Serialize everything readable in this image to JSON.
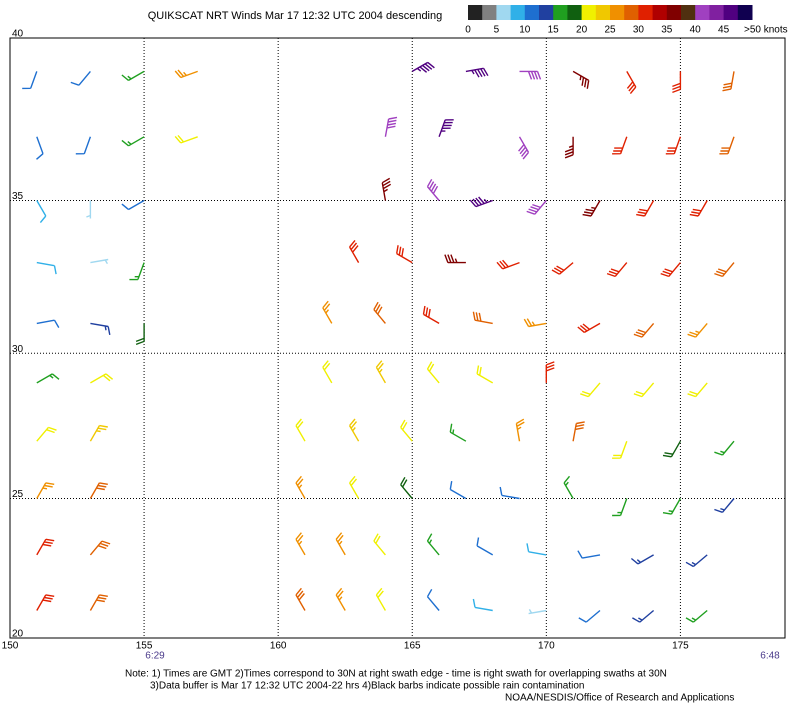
{
  "chart_data": {
    "type": "wind_barbs",
    "title": "QUIKSCAT NRT Winds Mar 17 12:32 UTC 2004 descending",
    "xlim": [
      150,
      178.9
    ],
    "ylim": [
      20,
      40
    ],
    "xticks": [
      150,
      155,
      160,
      165,
      170,
      175
    ],
    "yticks": [
      20,
      25,
      30,
      35,
      40
    ],
    "grid": true,
    "swath_times": [
      "6:29",
      "6:48"
    ],
    "notes": [
      "Note: 1) Times are GMT 2)Times correspond to 30N at right swath edge - time is right swath for overlapping swaths at 30N",
      "3)Data buffer is Mar 17 12:32 UTC 2004-22 hrs 4)Black barbs indicate possible rain contamination",
      "NOAA/NESDIS/Office of Research and Applications"
    ],
    "colorbar": {
      "range": [
        0,
        50
      ],
      "colors": [
        "#222222",
        "#808080",
        "#a0d8f0",
        "#30b0e8",
        "#1e6fd0",
        "#2040a0",
        "#20a020",
        "#106010",
        "#f0f000",
        "#f0c800",
        "#f09000",
        "#e06000",
        "#e02000",
        "#b00000",
        "#800000",
        "#503010",
        "#a040c0",
        "#8020a0",
        "#500080",
        "#100050"
      ],
      "ticks": [
        0,
        5,
        10,
        15,
        20,
        25,
        30,
        35,
        40,
        45,
        {
          "value": 50,
          "label": ">50 knots"
        }
      ]
    },
    "barbs": [
      [
        151,
        39,
        12,
        200
      ],
      [
        153,
        39,
        12,
        220
      ],
      [
        155,
        39,
        15,
        240
      ],
      [
        157,
        39,
        25,
        250
      ],
      [
        151,
        37,
        10,
        160
      ],
      [
        153,
        37,
        10,
        200
      ],
      [
        155,
        37,
        15,
        240
      ],
      [
        157,
        37,
        22,
        250
      ],
      [
        151,
        35,
        8,
        150
      ],
      [
        153,
        35,
        5,
        180
      ],
      [
        155,
        35,
        12,
        240
      ],
      [
        151,
        33,
        8,
        100
      ],
      [
        153,
        33,
        6,
        80
      ],
      [
        155,
        33,
        15,
        200
      ],
      [
        151,
        31,
        12,
        80
      ],
      [
        153,
        31,
        14,
        100
      ],
      [
        155,
        31,
        18,
        180
      ],
      [
        151,
        29,
        15,
        60
      ],
      [
        153,
        29,
        20,
        60
      ],
      [
        151,
        27,
        22,
        40
      ],
      [
        153,
        27,
        24,
        30
      ],
      [
        151,
        25,
        27,
        30
      ],
      [
        153,
        25,
        28,
        30
      ],
      [
        151,
        23,
        30,
        30
      ],
      [
        153,
        23,
        28,
        40
      ],
      [
        151,
        21,
        30,
        30
      ],
      [
        153,
        21,
        28,
        30
      ],
      [
        165,
        39,
        45,
        60
      ],
      [
        167,
        39,
        45,
        80
      ],
      [
        169,
        39,
        40,
        90
      ],
      [
        171,
        39,
        35,
        120
      ],
      [
        173,
        39,
        32,
        150
      ],
      [
        175,
        39,
        30,
        180
      ],
      [
        177,
        39,
        28,
        190
      ],
      [
        164,
        37,
        40,
        10
      ],
      [
        166,
        37,
        45,
        20
      ],
      [
        169,
        37,
        40,
        150
      ],
      [
        171,
        37,
        35,
        180
      ],
      [
        173,
        37,
        32,
        200
      ],
      [
        175,
        37,
        30,
        200
      ],
      [
        177,
        37,
        28,
        200
      ],
      [
        164,
        35,
        35,
        350
      ],
      [
        166,
        35,
        40,
        320
      ],
      [
        168,
        35,
        45,
        250
      ],
      [
        170,
        35,
        40,
        220
      ],
      [
        172,
        35,
        35,
        210
      ],
      [
        174,
        35,
        32,
        210
      ],
      [
        176,
        35,
        30,
        210
      ],
      [
        163,
        33,
        30,
        330
      ],
      [
        165,
        33,
        32,
        300
      ],
      [
        167,
        33,
        35,
        270
      ],
      [
        169,
        33,
        32,
        250
      ],
      [
        171,
        33,
        30,
        230
      ],
      [
        173,
        33,
        32,
        220
      ],
      [
        175,
        33,
        30,
        220
      ],
      [
        177,
        33,
        28,
        220
      ],
      [
        162,
        31,
        25,
        330
      ],
      [
        164,
        31,
        28,
        320
      ],
      [
        166,
        31,
        30,
        300
      ],
      [
        168,
        31,
        28,
        280
      ],
      [
        170,
        31,
        25,
        260
      ],
      [
        172,
        31,
        30,
        240
      ],
      [
        174,
        31,
        28,
        220
      ],
      [
        176,
        31,
        26,
        220
      ],
      [
        162,
        29,
        22,
        330
      ],
      [
        164,
        29,
        24,
        330
      ],
      [
        166,
        29,
        22,
        320
      ],
      [
        168,
        29,
        20,
        300
      ],
      [
        170,
        29,
        30,
        0
      ],
      [
        172,
        29,
        22,
        220
      ],
      [
        174,
        29,
        22,
        220
      ],
      [
        176,
        29,
        20,
        220
      ],
      [
        161,
        27,
        22,
        330
      ],
      [
        163,
        27,
        24,
        330
      ],
      [
        165,
        27,
        20,
        320
      ],
      [
        167,
        27,
        15,
        300
      ],
      [
        169,
        27,
        25,
        350
      ],
      [
        171,
        27,
        28,
        10
      ],
      [
        173,
        27,
        20,
        200
      ],
      [
        175,
        27,
        18,
        210
      ],
      [
        177,
        27,
        15,
        220
      ],
      [
        161,
        25,
        25,
        330
      ],
      [
        163,
        25,
        22,
        330
      ],
      [
        165,
        25,
        18,
        320
      ],
      [
        167,
        25,
        12,
        300
      ],
      [
        169,
        25,
        10,
        280
      ],
      [
        171,
        25,
        15,
        330
      ],
      [
        173,
        25,
        16,
        200
      ],
      [
        175,
        25,
        15,
        210
      ],
      [
        177,
        25,
        14,
        220
      ],
      [
        161,
        23,
        25,
        330
      ],
      [
        162.5,
        23,
        25,
        330
      ],
      [
        164,
        23,
        20,
        320
      ],
      [
        166,
        23,
        15,
        320
      ],
      [
        168,
        23,
        10,
        300
      ],
      [
        170,
        23,
        8,
        280
      ],
      [
        172,
        23,
        12,
        260
      ],
      [
        174,
        23,
        14,
        240
      ],
      [
        176,
        23,
        14,
        230
      ],
      [
        161,
        21,
        28,
        330
      ],
      [
        162.5,
        21,
        25,
        330
      ],
      [
        164,
        21,
        20,
        330
      ],
      [
        166,
        21,
        12,
        320
      ],
      [
        168,
        21,
        8,
        280
      ],
      [
        170,
        21,
        6,
        260
      ],
      [
        172,
        21,
        12,
        230
      ],
      [
        174,
        21,
        14,
        230
      ],
      [
        176,
        21,
        15,
        230
      ]
    ]
  }
}
